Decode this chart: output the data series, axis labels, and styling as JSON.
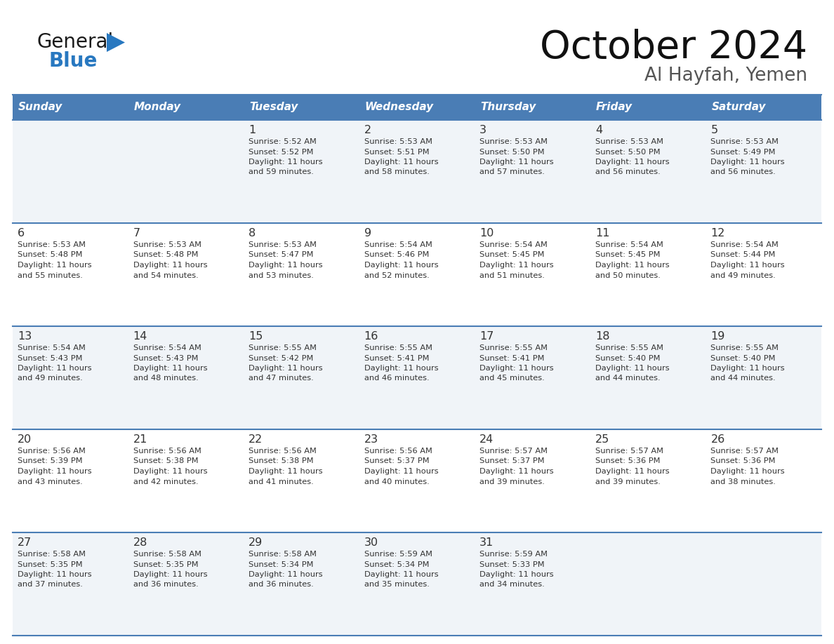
{
  "title": "October 2024",
  "subtitle": "Al Hayfah, Yemen",
  "days_of_week": [
    "Sunday",
    "Monday",
    "Tuesday",
    "Wednesday",
    "Thursday",
    "Friday",
    "Saturday"
  ],
  "header_bg": "#4a7db5",
  "header_text": "#ffffff",
  "row_bg_odd": "#f0f4f8",
  "row_bg_even": "#ffffff",
  "row_separator_color": "#4a7db5",
  "day_num_color": "#333333",
  "text_color": "#333333",
  "logo_general_color": "#1a1a1a",
  "logo_blue_color": "#2878c0",
  "calendar_data": [
    [
      null,
      null,
      {
        "day": 1,
        "sunrise": "5:52 AM",
        "sunset": "5:52 PM",
        "daylight": "11 hours\nand 59 minutes."
      },
      {
        "day": 2,
        "sunrise": "5:53 AM",
        "sunset": "5:51 PM",
        "daylight": "11 hours\nand 58 minutes."
      },
      {
        "day": 3,
        "sunrise": "5:53 AM",
        "sunset": "5:50 PM",
        "daylight": "11 hours\nand 57 minutes."
      },
      {
        "day": 4,
        "sunrise": "5:53 AM",
        "sunset": "5:50 PM",
        "daylight": "11 hours\nand 56 minutes."
      },
      {
        "day": 5,
        "sunrise": "5:53 AM",
        "sunset": "5:49 PM",
        "daylight": "11 hours\nand 56 minutes."
      }
    ],
    [
      {
        "day": 6,
        "sunrise": "5:53 AM",
        "sunset": "5:48 PM",
        "daylight": "11 hours\nand 55 minutes."
      },
      {
        "day": 7,
        "sunrise": "5:53 AM",
        "sunset": "5:48 PM",
        "daylight": "11 hours\nand 54 minutes."
      },
      {
        "day": 8,
        "sunrise": "5:53 AM",
        "sunset": "5:47 PM",
        "daylight": "11 hours\nand 53 minutes."
      },
      {
        "day": 9,
        "sunrise": "5:54 AM",
        "sunset": "5:46 PM",
        "daylight": "11 hours\nand 52 minutes."
      },
      {
        "day": 10,
        "sunrise": "5:54 AM",
        "sunset": "5:45 PM",
        "daylight": "11 hours\nand 51 minutes."
      },
      {
        "day": 11,
        "sunrise": "5:54 AM",
        "sunset": "5:45 PM",
        "daylight": "11 hours\nand 50 minutes."
      },
      {
        "day": 12,
        "sunrise": "5:54 AM",
        "sunset": "5:44 PM",
        "daylight": "11 hours\nand 49 minutes."
      }
    ],
    [
      {
        "day": 13,
        "sunrise": "5:54 AM",
        "sunset": "5:43 PM",
        "daylight": "11 hours\nand 49 minutes."
      },
      {
        "day": 14,
        "sunrise": "5:54 AM",
        "sunset": "5:43 PM",
        "daylight": "11 hours\nand 48 minutes."
      },
      {
        "day": 15,
        "sunrise": "5:55 AM",
        "sunset": "5:42 PM",
        "daylight": "11 hours\nand 47 minutes."
      },
      {
        "day": 16,
        "sunrise": "5:55 AM",
        "sunset": "5:41 PM",
        "daylight": "11 hours\nand 46 minutes."
      },
      {
        "day": 17,
        "sunrise": "5:55 AM",
        "sunset": "5:41 PM",
        "daylight": "11 hours\nand 45 minutes."
      },
      {
        "day": 18,
        "sunrise": "5:55 AM",
        "sunset": "5:40 PM",
        "daylight": "11 hours\nand 44 minutes."
      },
      {
        "day": 19,
        "sunrise": "5:55 AM",
        "sunset": "5:40 PM",
        "daylight": "11 hours\nand 44 minutes."
      }
    ],
    [
      {
        "day": 20,
        "sunrise": "5:56 AM",
        "sunset": "5:39 PM",
        "daylight": "11 hours\nand 43 minutes."
      },
      {
        "day": 21,
        "sunrise": "5:56 AM",
        "sunset": "5:38 PM",
        "daylight": "11 hours\nand 42 minutes."
      },
      {
        "day": 22,
        "sunrise": "5:56 AM",
        "sunset": "5:38 PM",
        "daylight": "11 hours\nand 41 minutes."
      },
      {
        "day": 23,
        "sunrise": "5:56 AM",
        "sunset": "5:37 PM",
        "daylight": "11 hours\nand 40 minutes."
      },
      {
        "day": 24,
        "sunrise": "5:57 AM",
        "sunset": "5:37 PM",
        "daylight": "11 hours\nand 39 minutes."
      },
      {
        "day": 25,
        "sunrise": "5:57 AM",
        "sunset": "5:36 PM",
        "daylight": "11 hours\nand 39 minutes."
      },
      {
        "day": 26,
        "sunrise": "5:57 AM",
        "sunset": "5:36 PM",
        "daylight": "11 hours\nand 38 minutes."
      }
    ],
    [
      {
        "day": 27,
        "sunrise": "5:58 AM",
        "sunset": "5:35 PM",
        "daylight": "11 hours\nand 37 minutes."
      },
      {
        "day": 28,
        "sunrise": "5:58 AM",
        "sunset": "5:35 PM",
        "daylight": "11 hours\nand 36 minutes."
      },
      {
        "day": 29,
        "sunrise": "5:58 AM",
        "sunset": "5:34 PM",
        "daylight": "11 hours\nand 36 minutes."
      },
      {
        "day": 30,
        "sunrise": "5:59 AM",
        "sunset": "5:34 PM",
        "daylight": "11 hours\nand 35 minutes."
      },
      {
        "day": 31,
        "sunrise": "5:59 AM",
        "sunset": "5:33 PM",
        "daylight": "11 hours\nand 34 minutes."
      },
      null,
      null
    ]
  ]
}
